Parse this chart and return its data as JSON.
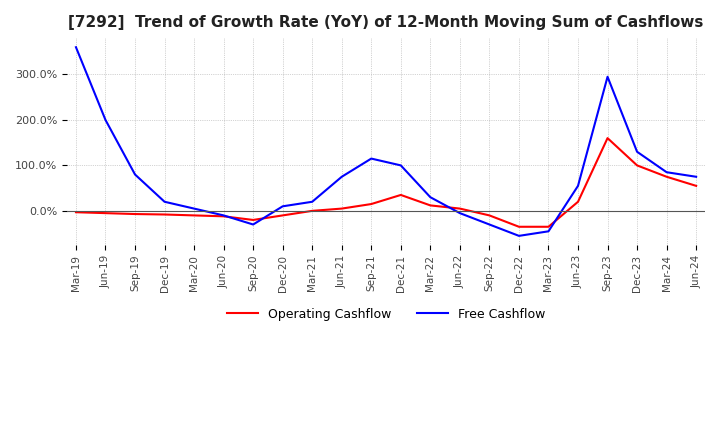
{
  "title": "[7292]  Trend of Growth Rate (YoY) of 12-Month Moving Sum of Cashflows",
  "title_fontsize": 11,
  "ylim": [
    -75,
    380
  ],
  "yticks": [
    0,
    100,
    200,
    300
  ],
  "ytick_labels": [
    "0.0%",
    "100.0%",
    "200.0%",
    "300.0%"
  ],
  "x_labels": [
    "Mar-19",
    "Jun-19",
    "Sep-19",
    "Dec-19",
    "Mar-20",
    "Jun-20",
    "Sep-20",
    "Dec-20",
    "Mar-21",
    "Jun-21",
    "Sep-21",
    "Dec-21",
    "Mar-22",
    "Jun-22",
    "Sep-22",
    "Dec-22",
    "Mar-23",
    "Jun-23",
    "Sep-23",
    "Dec-23",
    "Mar-24",
    "Jun-24"
  ],
  "operating_cashflow": [
    -3,
    -5,
    -7,
    -8,
    -10,
    -12,
    -20,
    -10,
    0,
    5,
    15,
    35,
    12,
    5,
    -10,
    -35,
    -35,
    20,
    160,
    100,
    75,
    55
  ],
  "free_cashflow": [
    360,
    200,
    80,
    20,
    5,
    -10,
    -30,
    10,
    20,
    75,
    115,
    100,
    30,
    -5,
    -30,
    -55,
    -45,
    55,
    295,
    130,
    85,
    75
  ],
  "operating_color": "#ff0000",
  "free_color": "#0000ff",
  "grid_color": "#aaaaaa",
  "background_color": "#ffffff",
  "line_width": 1.5
}
